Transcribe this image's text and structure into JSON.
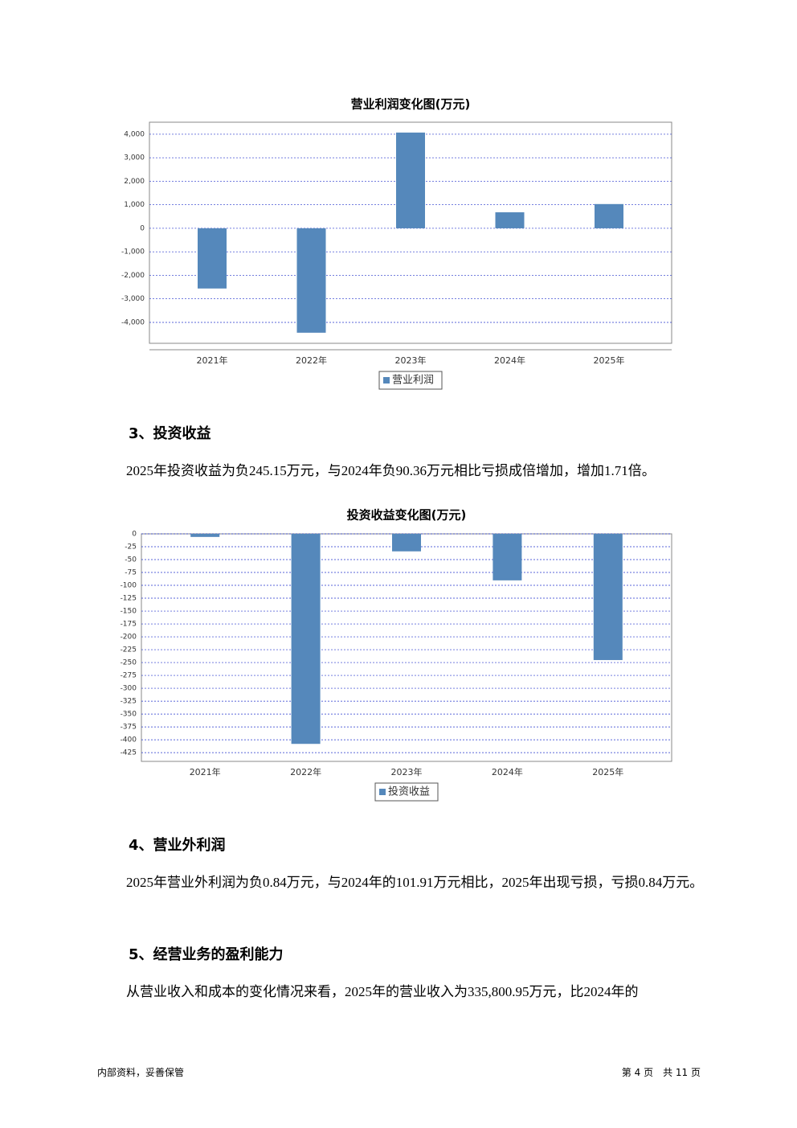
{
  "chart_data": [
    {
      "type": "bar",
      "title": "营业利润变化图(万元)",
      "categories": [
        "2021年",
        "2022年",
        "2023年",
        "2024年",
        "2025年"
      ],
      "series": [
        {
          "name": "营业利润",
          "color": "#5588bb",
          "values": [
            -2560,
            -4440,
            4070,
            680,
            1030
          ]
        }
      ],
      "ylim": [
        -4890,
        4510
      ],
      "yticks": [
        {
          "value": -4000,
          "label": "-4,000"
        },
        {
          "value": -3000,
          "label": "-3,000"
        },
        {
          "value": -2000,
          "label": "-2,000"
        },
        {
          "value": -1000,
          "label": "-1,000"
        },
        0,
        {
          "value": 1000,
          "label": "1,000"
        },
        {
          "value": 2000,
          "label": "2,000"
        },
        {
          "value": 3000,
          "label": "3,000"
        },
        {
          "value": 4000,
          "label": "4,000"
        }
      ],
      "grid": true
    },
    {
      "type": "bar",
      "title": "投资收益变化图(万元)",
      "categories": [
        "2021年",
        "2022年",
        "2023年",
        "2024年",
        "2025年"
      ],
      "series": [
        {
          "name": "投资收益",
          "color": "#5588bb",
          "values": [
            -6,
            -408,
            -34,
            -90.36,
            -245.15
          ]
        }
      ],
      "ylim": [
        -442,
        0
      ],
      "yticks": [
        0,
        -25,
        -50,
        -75,
        -100,
        -125,
        -150,
        -175,
        -200,
        -225,
        -250,
        -275,
        -300,
        -325,
        -350,
        -375,
        -400,
        -425
      ],
      "grid": true
    }
  ],
  "sections": [
    {
      "heading": "3、投资收益",
      "paragraph": "2025年投资收益为负245.15万元，与2024年负90.36万元相比亏损成倍增加，增加1.71倍。"
    },
    {
      "heading": "4、营业外利润",
      "paragraph": "2025年营业外利润为负0.84万元，与2024年的101.91万元相比，2025年出现亏损，亏损0.84万元。"
    },
    {
      "heading": "5、经营业务的盈利能力",
      "paragraph": "从营业收入和成本的变化情况来看，2025年的营业收入为335,800.95万元，比2024年的"
    }
  ],
  "footer": {
    "left": "内部资料，妥善保管",
    "right": "第 4 页　共 11 页"
  }
}
